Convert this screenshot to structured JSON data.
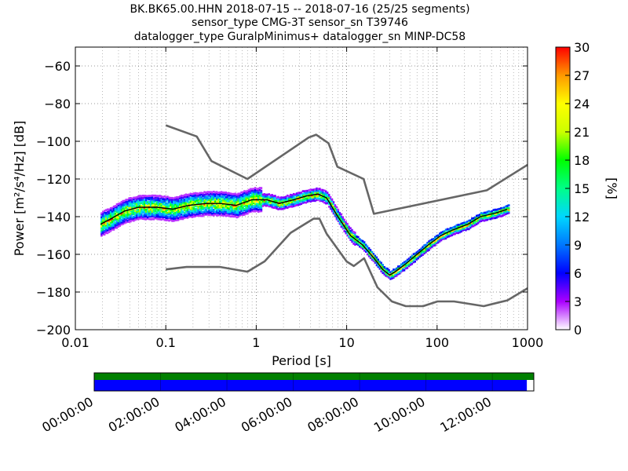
{
  "title_lines": [
    "BK.BK65.00.HHN   2018-07-15 -- 2018-07-16  (25/25 segments)",
    "sensor_type CMG-3T sensor_sn T39746",
    "datalogger_type GuralpMinimus+ datalogger_sn MINP-DC58"
  ],
  "chart_data": [
    {
      "type": "heatmap",
      "subtype": "probabilistic power spectral density",
      "xlabel": "Period [s]",
      "ylabel": "Power [m²/s⁴/Hz] [dB]",
      "x_scale": "log",
      "xlim": [
        0.01,
        1000
      ],
      "ylim": [
        -200,
        -50
      ],
      "x_ticks": [
        0.01,
        0.1,
        1,
        10,
        100,
        1000
      ],
      "x_tick_labels": [
        "0.01",
        "0.1",
        "1",
        "10",
        "100",
        "1000"
      ],
      "y_ticks": [
        -200,
        -180,
        -160,
        -140,
        -120,
        -100,
        -80,
        -60
      ],
      "y_tick_labels": [
        "−200",
        "−180",
        "−160",
        "−140",
        "−120",
        "−100",
        "−80",
        "−60"
      ],
      "grid": true,
      "colorbar": {
        "label": "[%]",
        "min": 0,
        "max": 30,
        "ticks": [
          0,
          3,
          6,
          9,
          12,
          15,
          18,
          21,
          24,
          27,
          30
        ],
        "colormap": "pqlx"
      },
      "series": [
        {
          "name": "",
          "kind": "new-high-noise-model",
          "color": "#666666",
          "x": [
            0.1,
            0.22,
            0.32,
            0.8,
            3.8,
            4.6,
            6.3,
            7.9,
            15.4,
            20,
            354.8,
            1000
          ],
          "y": [
            -91.5,
            -97.4,
            -110.5,
            -120,
            -98,
            -96.5,
            -101,
            -113.5,
            -120,
            -138.5,
            -126,
            -112.5
          ]
        },
        {
          "name": "",
          "kind": "new-low-noise-model",
          "color": "#666666",
          "x": [
            0.1,
            0.17,
            0.4,
            0.8,
            1.24,
            2.4,
            4.3,
            5,
            6,
            10,
            12,
            15.6,
            21.9,
            31.6,
            45,
            70,
            101,
            154,
            328,
            600,
            1000
          ],
          "y": [
            -168,
            -166.7,
            -166.7,
            -169.2,
            -163.7,
            -148.6,
            -141.1,
            -141.1,
            -149,
            -163.8,
            -166.2,
            -162.1,
            -177.5,
            -185,
            -187.5,
            -187.5,
            -185,
            -185,
            -187.5,
            -184.4,
            -178
          ]
        },
        {
          "name": "",
          "kind": "mode",
          "color": "#000000",
          "x": [
            0.019,
            0.025,
            0.035,
            0.05,
            0.08,
            0.12,
            0.18,
            0.28,
            0.4,
            0.6,
            0.9,
            1.3,
            1.8,
            2.6,
            3.6,
            4.8,
            6,
            8,
            11,
            15,
            20,
            25,
            30,
            35,
            45,
            60,
            80,
            110,
            150,
            220,
            300,
            450,
            600
          ],
          "y": [
            -144,
            -141,
            -137,
            -135,
            -135,
            -136,
            -134,
            -133,
            -133,
            -134,
            -131,
            -131,
            -133,
            -131,
            -129,
            -128,
            -130,
            -140,
            -150,
            -155,
            -162,
            -168,
            -171,
            -169,
            -165,
            -160,
            -155,
            -150,
            -147,
            -144,
            -140,
            -138,
            -136
          ]
        }
      ],
      "density": {
        "spread_short_period": "wide scatter between -145 and -125 dB from 0.02 s to about 1 s",
        "spread_long_period": "band about 4-6 dB wide from 10 s to 600 s"
      }
    },
    {
      "type": "timeline",
      "description": "data availability bar",
      "tick_labels": [
        "00:00:00",
        "02:00:00",
        "04:00:00",
        "06:00:00",
        "08:00:00",
        "10:00:00",
        "12:00:00"
      ],
      "tick_hours": [
        0,
        2,
        4,
        6,
        8,
        10,
        12
      ],
      "span_hours": 13.25,
      "rows": [
        {
          "kind": "available",
          "color": "#008000",
          "start": 0,
          "end": 13.25
        },
        {
          "kind": "used",
          "color": "#0000ff",
          "start": 0,
          "end": 13.04
        }
      ]
    }
  ]
}
